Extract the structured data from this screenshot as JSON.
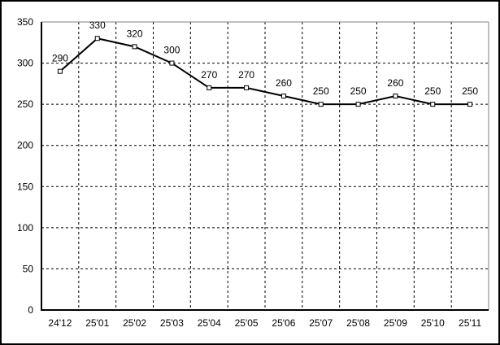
{
  "figure": {
    "background": "#ffffff",
    "outer_border_color": "#000000"
  },
  "chart_data": {
    "type": "line",
    "title": "",
    "xlabel": "",
    "ylabel": "",
    "categories": [
      "24'12",
      "25'01",
      "25'02",
      "25'03",
      "25'04",
      "25'05",
      "25'06",
      "25'07",
      "25'08",
      "25'09",
      "25'10",
      "25'11"
    ],
    "series": [
      {
        "values": [
          290,
          330,
          320,
          300,
          270,
          270,
          260,
          250,
          250,
          260,
          250,
          250
        ],
        "color": "#000000",
        "marker": "square",
        "marker_fill": "#ffffff",
        "data_labels": [
          "290",
          "330",
          "320",
          "300",
          "270",
          "270",
          "260",
          "250",
          "250",
          "260",
          "250",
          "250"
        ]
      }
    ],
    "ylim": [
      0,
      350
    ],
    "y_tick_step": 50,
    "y_tick_labels": [
      "0",
      "50",
      "100",
      "150",
      "200",
      "250",
      "300",
      "350"
    ],
    "grid": true,
    "gridline_style": "dashed",
    "gridline_color": "#000000",
    "plot_border_color": "#808080",
    "axis_color": "#000000",
    "legend": "none"
  }
}
